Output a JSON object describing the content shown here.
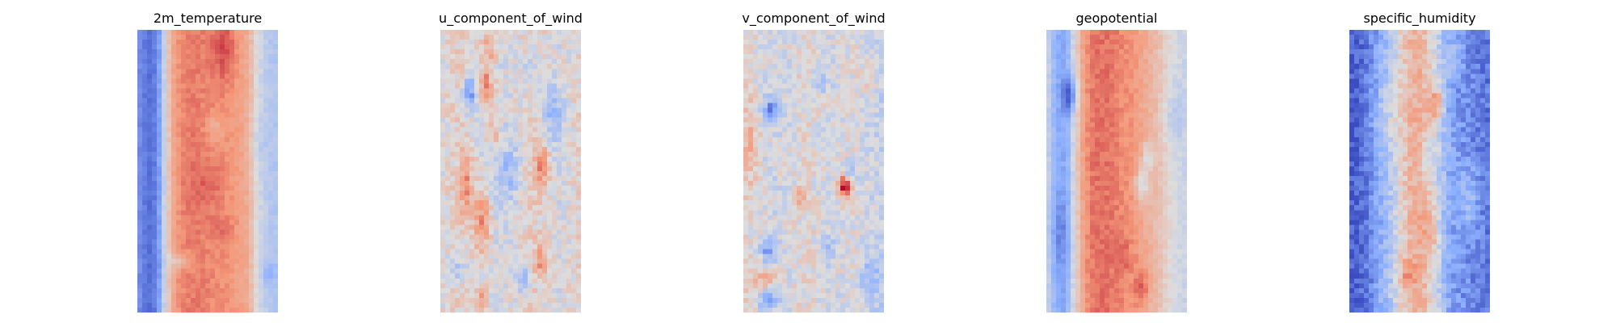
{
  "chart_data": [
    {
      "type": "heatmap",
      "title": "2m_temperature",
      "colormap": "coolwarm",
      "axes": "off",
      "grid": false,
      "legend": "none",
      "profile": [
        0.18,
        0.12,
        0.08,
        0.22,
        0.55,
        0.72,
        0.78,
        0.8,
        0.8,
        0.79,
        0.78,
        0.77,
        0.76,
        0.74,
        0.72,
        0.68,
        0.52,
        0.42,
        0.38,
        0.36
      ],
      "features": [
        {
          "cx": 0.62,
          "cy": 0.06,
          "rx": 0.08,
          "ry": 0.12,
          "amp": 0.12
        },
        {
          "cx": 0.55,
          "cy": 0.35,
          "rx": 0.06,
          "ry": 0.05,
          "amp": -0.1
        },
        {
          "cx": 0.5,
          "cy": 0.55,
          "rx": 0.1,
          "ry": 0.08,
          "amp": 0.06
        },
        {
          "cx": 0.3,
          "cy": 0.82,
          "rx": 0.1,
          "ry": 0.03,
          "amp": -0.14
        },
        {
          "cx": 0.62,
          "cy": 0.7,
          "rx": 0.08,
          "ry": 0.05,
          "amp": 0.06
        },
        {
          "cx": 0.85,
          "cy": 0.4,
          "rx": 0.06,
          "ry": 0.1,
          "amp": -0.06
        },
        {
          "cx": 0.93,
          "cy": 0.86,
          "rx": 0.05,
          "ry": 0.04,
          "amp": -0.12
        }
      ],
      "noise": 0.03,
      "seed": 1
    },
    {
      "type": "heatmap",
      "title": "u_component_of_wind",
      "colormap": "coolwarm",
      "axes": "off",
      "grid": false,
      "legend": "none",
      "profile": [
        0.5,
        0.52,
        0.55,
        0.55,
        0.52,
        0.5,
        0.48,
        0.46,
        0.46,
        0.48,
        0.5,
        0.52,
        0.55,
        0.55,
        0.52,
        0.5,
        0.48,
        0.5,
        0.52,
        0.55
      ],
      "features": [
        {
          "cx": 0.22,
          "cy": 0.22,
          "rx": 0.06,
          "ry": 0.06,
          "amp": -0.3
        },
        {
          "cx": 0.32,
          "cy": 0.2,
          "rx": 0.06,
          "ry": 0.07,
          "amp": 0.3
        },
        {
          "cx": 0.35,
          "cy": 0.06,
          "rx": 0.05,
          "ry": 0.07,
          "amp": 0.22
        },
        {
          "cx": 0.38,
          "cy": 0.36,
          "rx": 0.04,
          "ry": 0.05,
          "amp": 0.2
        },
        {
          "cx": 0.18,
          "cy": 0.55,
          "rx": 0.05,
          "ry": 0.1,
          "amp": 0.22
        },
        {
          "cx": 0.3,
          "cy": 0.68,
          "rx": 0.06,
          "ry": 0.12,
          "amp": 0.26
        },
        {
          "cx": 0.72,
          "cy": 0.48,
          "rx": 0.05,
          "ry": 0.08,
          "amp": 0.24
        },
        {
          "cx": 0.72,
          "cy": 0.82,
          "rx": 0.05,
          "ry": 0.06,
          "amp": 0.2
        },
        {
          "cx": 0.8,
          "cy": 0.3,
          "rx": 0.07,
          "ry": 0.1,
          "amp": -0.2
        },
        {
          "cx": 0.5,
          "cy": 0.5,
          "rx": 0.08,
          "ry": 0.1,
          "amp": -0.18
        },
        {
          "cx": 0.58,
          "cy": 0.88,
          "rx": 0.06,
          "ry": 0.05,
          "amp": -0.2
        },
        {
          "cx": 0.12,
          "cy": 0.85,
          "rx": 0.06,
          "ry": 0.06,
          "amp": -0.16
        },
        {
          "cx": 0.3,
          "cy": 0.95,
          "rx": 0.05,
          "ry": 0.04,
          "amp": 0.26
        },
        {
          "cx": 0.65,
          "cy": 0.15,
          "rx": 0.06,
          "ry": 0.08,
          "amp": -0.14
        }
      ],
      "noise": 0.09,
      "seed": 2
    },
    {
      "type": "heatmap",
      "title": "v_component_of_wind",
      "colormap": "coolwarm",
      "axes": "off",
      "grid": false,
      "legend": "none",
      "profile": [
        0.54,
        0.52,
        0.5,
        0.48,
        0.47,
        0.47,
        0.48,
        0.5,
        0.52,
        0.52,
        0.5,
        0.48,
        0.47,
        0.48,
        0.5,
        0.5,
        0.48,
        0.46,
        0.44,
        0.42
      ],
      "features": [
        {
          "cx": 0.2,
          "cy": 0.28,
          "rx": 0.06,
          "ry": 0.04,
          "amp": -0.32
        },
        {
          "cx": 0.72,
          "cy": 0.55,
          "rx": 0.04,
          "ry": 0.04,
          "amp": 0.5
        },
        {
          "cx": 0.75,
          "cy": 0.5,
          "rx": 0.05,
          "ry": 0.03,
          "amp": -0.2
        },
        {
          "cx": 0.18,
          "cy": 0.78,
          "rx": 0.06,
          "ry": 0.04,
          "amp": -0.26
        },
        {
          "cx": 0.18,
          "cy": 0.96,
          "rx": 0.07,
          "ry": 0.03,
          "amp": -0.3
        },
        {
          "cx": 0.9,
          "cy": 0.88,
          "rx": 0.07,
          "ry": 0.08,
          "amp": -0.18
        },
        {
          "cx": 0.05,
          "cy": 0.4,
          "rx": 0.05,
          "ry": 0.14,
          "amp": 0.14
        },
        {
          "cx": 0.15,
          "cy": 0.88,
          "rx": 0.08,
          "ry": 0.03,
          "amp": 0.18
        },
        {
          "cx": 0.55,
          "cy": 0.18,
          "rx": 0.05,
          "ry": 0.04,
          "amp": -0.16
        },
        {
          "cx": 0.4,
          "cy": 0.6,
          "rx": 0.05,
          "ry": 0.04,
          "amp": 0.16
        },
        {
          "cx": 0.6,
          "cy": 0.78,
          "rx": 0.05,
          "ry": 0.04,
          "amp": -0.16
        },
        {
          "cx": 0.9,
          "cy": 0.15,
          "rx": 0.05,
          "ry": 0.06,
          "amp": 0.14
        }
      ],
      "noise": 0.09,
      "seed": 3
    },
    {
      "type": "heatmap",
      "title": "geopotential",
      "colormap": "coolwarm",
      "axes": "off",
      "grid": false,
      "legend": "none",
      "profile": [
        0.46,
        0.3,
        0.22,
        0.3,
        0.55,
        0.72,
        0.8,
        0.82,
        0.82,
        0.8,
        0.78,
        0.76,
        0.74,
        0.7,
        0.66,
        0.62,
        0.56,
        0.5,
        0.46,
        0.44
      ],
      "features": [
        {
          "cx": 0.17,
          "cy": 0.23,
          "rx": 0.05,
          "ry": 0.06,
          "amp": -0.28
        },
        {
          "cx": 0.72,
          "cy": 0.45,
          "rx": 0.04,
          "ry": 0.05,
          "amp": -0.18
        },
        {
          "cx": 0.68,
          "cy": 0.55,
          "rx": 0.05,
          "ry": 0.06,
          "amp": -0.22
        },
        {
          "cx": 0.68,
          "cy": 0.9,
          "rx": 0.05,
          "ry": 0.07,
          "amp": 0.14
        },
        {
          "cx": 0.55,
          "cy": 0.8,
          "rx": 0.06,
          "ry": 0.06,
          "amp": 0.08
        },
        {
          "cx": 0.9,
          "cy": 0.3,
          "rx": 0.07,
          "ry": 0.1,
          "amp": -0.1
        },
        {
          "cx": 0.1,
          "cy": 0.72,
          "rx": 0.07,
          "ry": 0.12,
          "amp": -0.1
        }
      ],
      "noise": 0.035,
      "seed": 4
    },
    {
      "type": "heatmap",
      "title": "specific_humidity",
      "colormap": "coolwarm",
      "axes": "off",
      "grid": false,
      "legend": "none",
      "profile": [
        0.04,
        0.06,
        0.1,
        0.16,
        0.24,
        0.32,
        0.42,
        0.54,
        0.64,
        0.68,
        0.64,
        0.54,
        0.42,
        0.3,
        0.22,
        0.18,
        0.16,
        0.14,
        0.12,
        0.1
      ],
      "features": [
        {
          "cx": 0.62,
          "cy": 0.26,
          "rx": 0.05,
          "ry": 0.06,
          "amp": 0.28
        },
        {
          "cx": 0.58,
          "cy": 0.72,
          "rx": 0.06,
          "ry": 0.1,
          "amp": 0.14
        },
        {
          "cx": 0.4,
          "cy": 0.86,
          "rx": 0.06,
          "ry": 0.05,
          "amp": 0.14
        },
        {
          "cx": 0.85,
          "cy": 0.6,
          "rx": 0.08,
          "ry": 0.12,
          "amp": 0.16
        },
        {
          "cx": 0.25,
          "cy": 0.3,
          "rx": 0.1,
          "ry": 0.12,
          "amp": 0.1
        },
        {
          "cx": 0.75,
          "cy": 0.1,
          "rx": 0.06,
          "ry": 0.05,
          "amp": 0.12
        },
        {
          "cx": 0.55,
          "cy": 0.45,
          "rx": 0.04,
          "ry": 0.06,
          "amp": -0.14
        }
      ],
      "noise": 0.08,
      "seed": 5
    }
  ]
}
